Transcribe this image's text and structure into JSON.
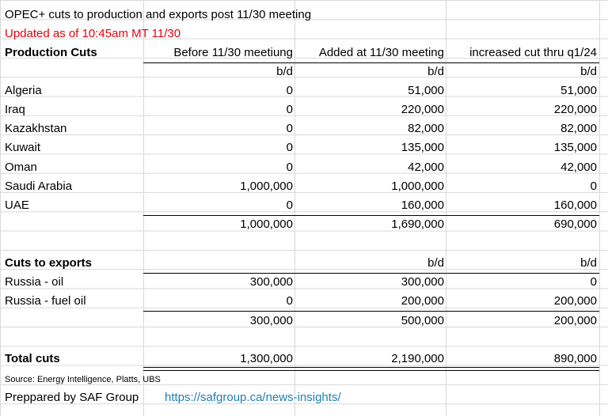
{
  "title": "OPEC+ cuts to production and exports post 11/30 meeting",
  "updated": "Updated as of 10:45am MT 11/30",
  "production": {
    "header": {
      "label": "Production Cuts",
      "col1": "Before 11/30 meetiung",
      "col2": "Added at 11/30 meeting",
      "col3": "increased cut thru q1/24"
    },
    "units": {
      "col1": "b/d",
      "col2": "b/d",
      "col3": "b/d"
    },
    "rows": [
      {
        "name": "Algeria",
        "before": "0",
        "added": "51,000",
        "increased": "51,000"
      },
      {
        "name": "Iraq",
        "before": "0",
        "added": "220,000",
        "increased": "220,000"
      },
      {
        "name": "Kazakhstan",
        "before": "0",
        "added": "82,000",
        "increased": "82,000"
      },
      {
        "name": "Kuwait",
        "before": "0",
        "added": "135,000",
        "increased": "135,000"
      },
      {
        "name": "Oman",
        "before": "0",
        "added": "42,000",
        "increased": "42,000"
      },
      {
        "name": "Saudi Arabia",
        "before": "1,000,000",
        "added": "1,000,000",
        "increased": "0"
      },
      {
        "name": "UAE",
        "before": "0",
        "added": "160,000",
        "increased": "160,000"
      }
    ],
    "total": {
      "before": "1,000,000",
      "added": "1,690,000",
      "increased": "690,000"
    }
  },
  "exports": {
    "label": "Cuts to exports",
    "units": {
      "col2": "b/d",
      "col3": "b/d"
    },
    "rows": [
      {
        "name": "Russia - oil",
        "before": "300,000",
        "added": "300,000",
        "increased": "0"
      },
      {
        "name": "Russia - fuel oil",
        "before": "0",
        "added": "200,000",
        "increased": "200,000"
      }
    ],
    "total": {
      "before": "300,000",
      "added": "500,000",
      "increased": "200,000"
    }
  },
  "total_cuts": {
    "label": "Total cuts",
    "before": "1,300,000",
    "added": "2,190,000",
    "increased": "890,000"
  },
  "source": "Source: Energy Intelligence, Platts, UBS",
  "prepared_by": "Preppared by SAF Group",
  "link": "https://safgroup.ca/news-insights/"
}
